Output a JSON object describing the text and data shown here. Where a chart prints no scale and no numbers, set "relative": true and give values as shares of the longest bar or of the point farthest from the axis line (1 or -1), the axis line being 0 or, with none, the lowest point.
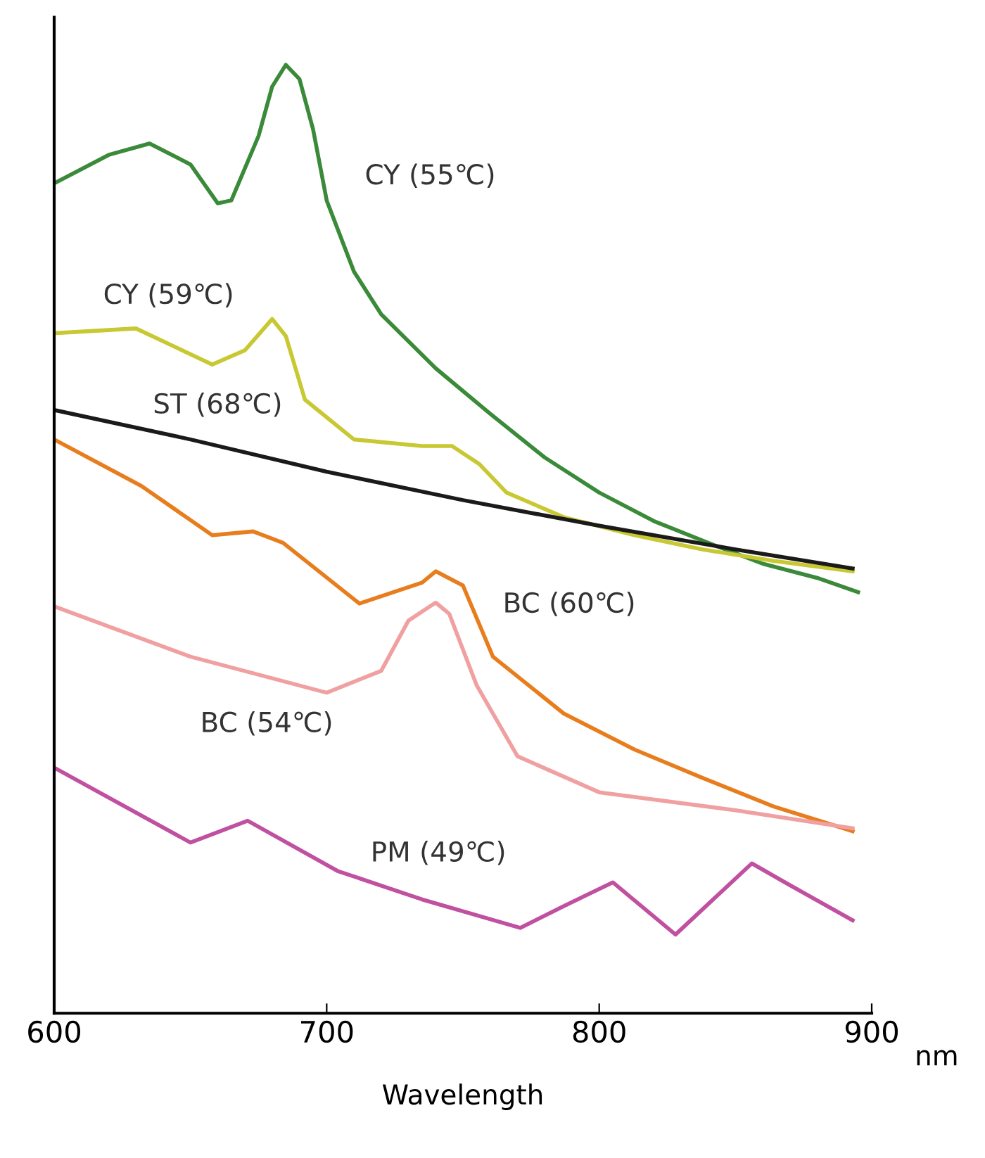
{
  "chart_data": {
    "type": "line",
    "relative": true,
    "xlabel": "Wavelength",
    "xlim": [
      600,
      900
    ],
    "xticks": [
      600,
      700,
      800,
      900
    ],
    "tick_labels": "x",
    "grid": false,
    "marker": "none",
    "line_style": "solid",
    "series": [
      {
        "color": "#3a8a3a",
        "x": [
          600,
          620,
          635,
          650,
          660,
          665,
          675,
          680,
          685,
          690,
          695,
          700,
          710,
          720,
          740,
          760,
          780,
          800,
          820,
          840,
          860,
          880,
          895
        ],
        "values": [
          0.875,
          0.905,
          0.917,
          0.895,
          0.854,
          0.857,
          0.925,
          0.977,
          1.0,
          0.985,
          0.932,
          0.857,
          0.782,
          0.737,
          0.68,
          0.632,
          0.586,
          0.549,
          0.519,
          0.496,
          0.474,
          0.459,
          0.444
        ]
      },
      {
        "color": "#c8c832",
        "x": [
          600,
          630,
          658,
          670,
          680,
          685,
          692,
          710,
          735,
          746,
          756,
          766,
          787,
          813,
          838,
          864,
          893
        ],
        "values": [
          0.717,
          0.722,
          0.684,
          0.699,
          0.732,
          0.714,
          0.647,
          0.605,
          0.598,
          0.598,
          0.579,
          0.549,
          0.523,
          0.504,
          0.489,
          0.477,
          0.466
        ]
      },
      {
        "color": "#1a1a1a",
        "x": [
          600,
          650,
          700,
          750,
          800,
          850,
          893
        ],
        "values": [
          0.636,
          0.605,
          0.571,
          0.541,
          0.514,
          0.489,
          0.469
        ]
      },
      {
        "color": "#e87d1e",
        "x": [
          600,
          632,
          658,
          673,
          684,
          712,
          735,
          740,
          750,
          761,
          787,
          813,
          838,
          864,
          893
        ],
        "values": [
          0.605,
          0.556,
          0.504,
          0.508,
          0.496,
          0.432,
          0.454,
          0.466,
          0.451,
          0.376,
          0.316,
          0.278,
          0.248,
          0.218,
          0.192
        ]
      },
      {
        "color": "#f0a0a0",
        "x": [
          600,
          650,
          700,
          720,
          730,
          740,
          745,
          755,
          770,
          800,
          850,
          893
        ],
        "values": [
          0.429,
          0.376,
          0.338,
          0.361,
          0.414,
          0.433,
          0.421,
          0.346,
          0.271,
          0.233,
          0.214,
          0.195
        ]
      },
      {
        "color": "#c050a0",
        "x": [
          600,
          650,
          671,
          704,
          735,
          771,
          787,
          805,
          828,
          856,
          870,
          893
        ],
        "values": [
          0.259,
          0.18,
          0.203,
          0.15,
          0.12,
          0.09,
          0.113,
          0.138,
          0.083,
          0.158,
          0.135,
          0.098
        ]
      }
    ],
    "annotations": [
      "CY (55℃)",
      "CY (59℃)",
      "ST (68℃)",
      "BC (60℃)",
      "BC (54℃)",
      "PM (49℃)",
      "nm"
    ]
  }
}
